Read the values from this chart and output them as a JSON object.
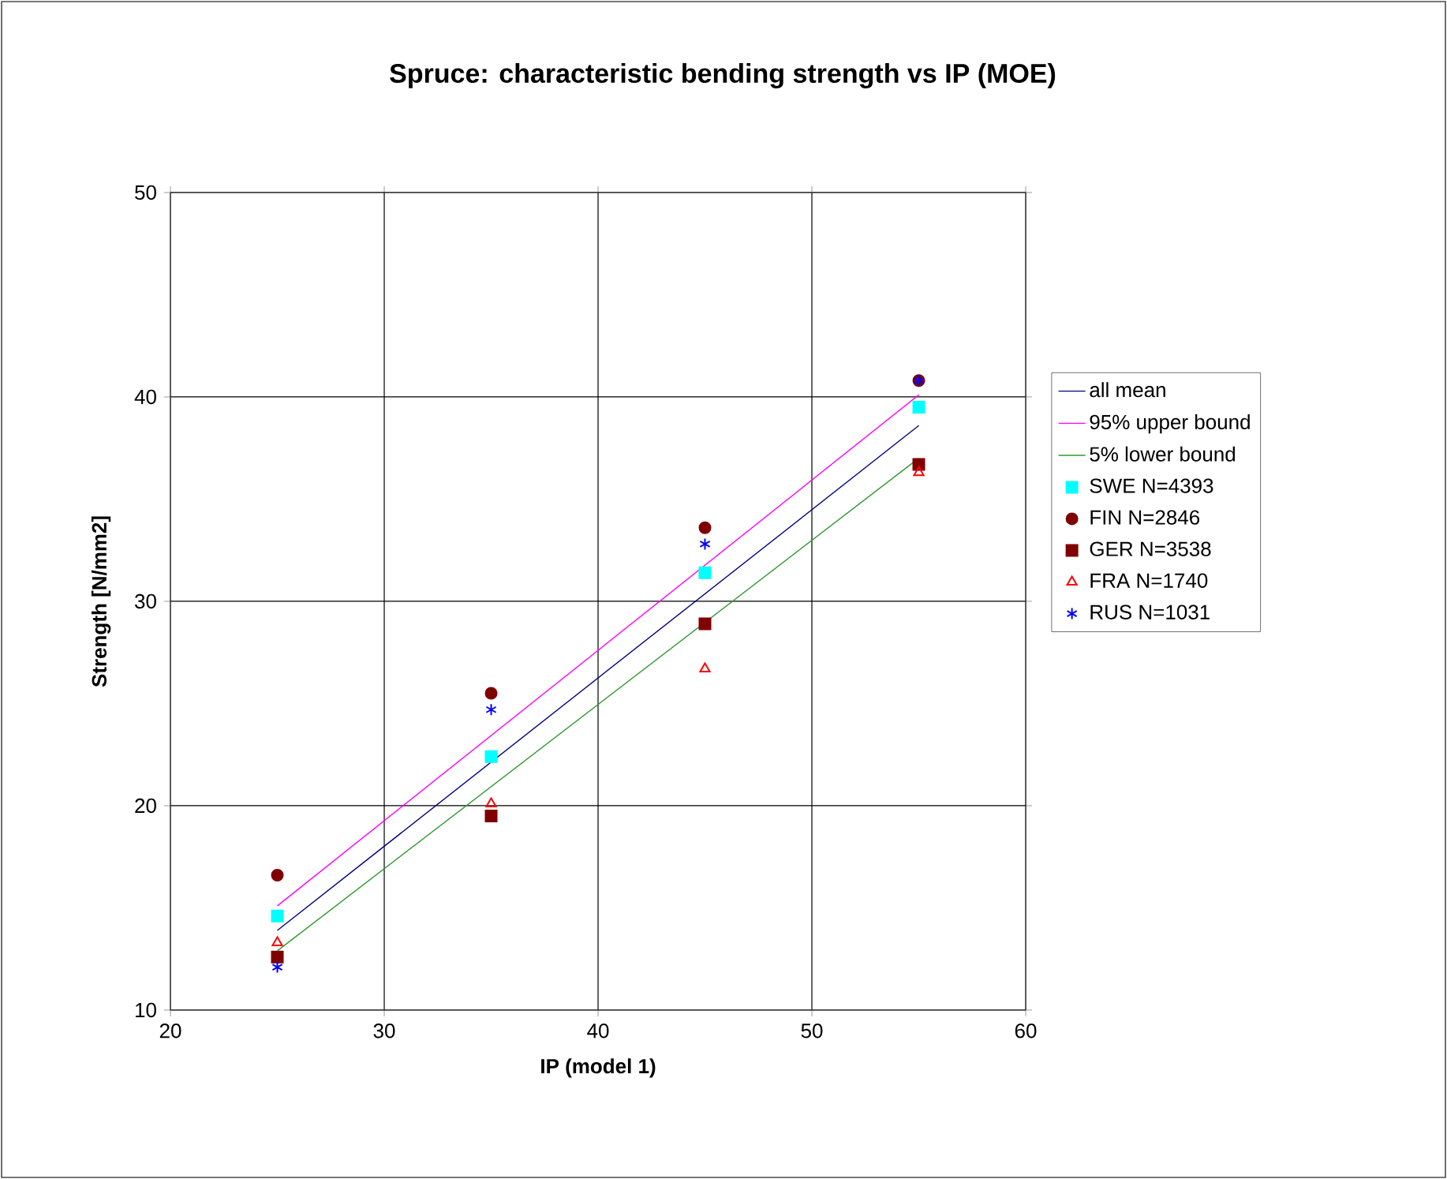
{
  "chart_data": {
    "type": "scatter",
    "title": "Spruce: characteristic bending strength vs IP (MOE)",
    "xlabel": "IP (model 1)",
    "ylabel": "Strength [N/mm2]",
    "xlim": [
      20,
      60
    ],
    "ylim": [
      10,
      50
    ],
    "xticks": [
      20,
      30,
      40,
      50,
      60
    ],
    "yticks": [
      10,
      20,
      30,
      40,
      50
    ],
    "grid": true,
    "legend": "right",
    "series": [
      {
        "name": "all mean",
        "type": "line",
        "color": "#000080",
        "marker": "none",
        "x": [
          25,
          55
        ],
        "values": [
          13.9,
          38.6
        ]
      },
      {
        "name": "95% upper bound",
        "type": "line",
        "color": "#ff00ff",
        "marker": "none",
        "x": [
          25,
          55
        ],
        "values": [
          15.1,
          40.1
        ]
      },
      {
        "name": "5% lower bound",
        "type": "line",
        "color": "#339933",
        "marker": "none",
        "x": [
          25,
          55
        ],
        "values": [
          12.9,
          37.0
        ]
      },
      {
        "name": "SWE N=4393",
        "color": "#00ffff",
        "marker": "square",
        "x": [
          25,
          35,
          45,
          55
        ],
        "values": [
          14.6,
          22.4,
          31.4,
          39.5
        ]
      },
      {
        "name": "RUS N=1031",
        "color": "#0000ff",
        "marker": "cross",
        "x": [
          25,
          35,
          45,
          55
        ],
        "values": [
          12.1,
          24.7,
          32.8,
          40.8
        ]
      },
      {
        "name": "FIN N=2846",
        "color": "#800000",
        "marker": "circle",
        "x": [
          25,
          35,
          45,
          55
        ],
        "values": [
          16.6,
          25.5,
          33.6,
          40.8
        ]
      },
      {
        "name": "GER N=3538",
        "color": "#800000",
        "marker": "square",
        "x": [
          25,
          35,
          45,
          55
        ],
        "values": [
          12.6,
          19.5,
          28.9,
          36.7
        ]
      },
      {
        "name": "FRA N=1740",
        "color": "#ff0000",
        "marker": "triangle",
        "x": [
          25,
          35,
          45,
          55
        ],
        "values": [
          13.3,
          20.1,
          26.7,
          36.3
        ]
      }
    ]
  }
}
